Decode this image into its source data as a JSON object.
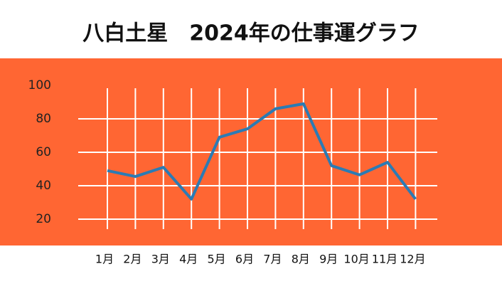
{
  "chart_data": {
    "type": "line",
    "title": "八白土星　2024年の仕事運グラフ",
    "categories": [
      "1月",
      "2月",
      "3月",
      "4月",
      "5月",
      "6月",
      "7月",
      "8月",
      "9月",
      "10月",
      "11月",
      "12月"
    ],
    "series": [
      {
        "color": "#2b7bb4",
        "values": [
          49,
          45.5,
          51,
          32,
          69,
          74,
          86,
          89,
          52,
          46.5,
          54,
          32
        ]
      }
    ],
    "ylim": [
      20,
      100
    ],
    "yticks": [
      20,
      40,
      60,
      80,
      100
    ],
    "grid": true,
    "background": "#ff6633"
  }
}
